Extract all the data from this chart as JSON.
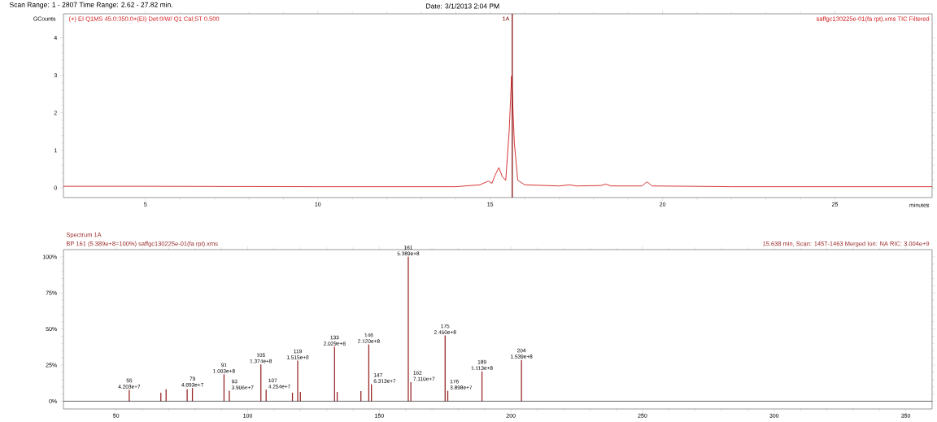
{
  "chart_data": [
    {
      "type": "line",
      "title": "Scan Range: 1 - 2807 Time Range: 2.62 - 27.82 min.",
      "subtitle": "Date: 3/1/2013 2:04 PM",
      "xlabel": "minutes",
      "ylabel": "GCounts",
      "x": [
        2.62,
        5,
        10,
        14.0,
        14.7,
        14.95,
        15.05,
        15.15,
        15.25,
        15.35,
        15.45,
        15.55,
        15.62,
        15.7,
        15.8,
        16,
        17,
        17.3,
        17.5,
        18.2,
        18.35,
        18.5,
        19.4,
        19.55,
        19.7,
        22,
        27.82
      ],
      "values": [
        0.04,
        0.04,
        0.03,
        0.03,
        0.08,
        0.18,
        0.12,
        0.35,
        0.54,
        0.3,
        0.2,
        1.5,
        2.98,
        1.2,
        0.2,
        0.08,
        0.05,
        0.08,
        0.05,
        0.06,
        0.1,
        0.05,
        0.05,
        0.16,
        0.05,
        0.03,
        0.03
      ],
      "color": "#d21f1f",
      "xlim": [
        2.62,
        27.82
      ],
      "ylim": [
        -0.26,
        4.64
      ],
      "xticks": [
        5,
        10,
        15,
        20,
        25
      ],
      "yticks": [
        0,
        1,
        2,
        3,
        4
      ],
      "ref_lines": [
        {
          "axis": "x",
          "value": 15.64,
          "label": "1A",
          "color": "#7a0000"
        }
      ],
      "annotations": [
        "(+) EI Q1MS 45.0:350.0+(EI) Det:0/W/ Q1 Cal;ST 0.500",
        "saffgc130225e-01(fa rpt).xms TIC Filtered"
      ]
    },
    {
      "type": "bar",
      "x": [
        55,
        67,
        69,
        77,
        79,
        91,
        93,
        105,
        107,
        117,
        119,
        120,
        133,
        134,
        143,
        146,
        147,
        161,
        162,
        175,
        176,
        189,
        204
      ],
      "values": [
        7.8,
        5.9,
        8.3,
        8.3,
        9.1,
        18.6,
        7.3,
        25.5,
        7.9,
        5.9,
        28.1,
        6.4,
        37.7,
        6.4,
        7.0,
        39.3,
        11.7,
        100,
        13.2,
        45.5,
        7.2,
        20.7,
        28.6
      ],
      "color": "#9a2a2a",
      "xlim": [
        30,
        360
      ],
      "ylim": [
        -5.4,
        105
      ],
      "xticks": [
        50,
        100,
        150,
        200,
        250,
        300,
        350
      ],
      "yticks": [
        {
          "value": 0,
          "label": "0%"
        },
        {
          "value": 25,
          "label": "25%"
        },
        {
          "value": 50,
          "label": "50%"
        },
        {
          "value": 75,
          "label": "75%"
        },
        {
          "value": 100,
          "label": "100%"
        }
      ],
      "ref_lines": [
        {
          "axis": "y",
          "value": 0,
          "color": "#000000"
        }
      ],
      "annotations": [
        "Spectrum 1A",
        "BP 161 (5.389e+8=100%) saffgc130225e-01(fa rpt).xms",
        "15.638 min, Scan: 1457-1463 Merged Ion: NA RIC: 3.004e+9",
        {
          "text": "55",
          "x": 55,
          "y": 7.8
        },
        {
          "text": "4.203e+7",
          "x": 55,
          "y": 7.8
        },
        {
          "text": "79",
          "x": 79,
          "y": 9.1
        },
        {
          "text": "4.893e+7",
          "x": 79,
          "y": 9.1
        },
        {
          "text": "91",
          "x": 91,
          "y": 18.6
        },
        {
          "text": "1.003e+8",
          "x": 91,
          "y": 18.6
        },
        {
          "text": "93",
          "x": 93,
          "y": 7.3
        },
        {
          "text": "3.906e+7",
          "x": 93,
          "y": 7.3
        },
        {
          "text": "105",
          "x": 105,
          "y": 25.5
        },
        {
          "text": "1.374e+8",
          "x": 105,
          "y": 25.5
        },
        {
          "text": "107",
          "x": 107,
          "y": 7.9
        },
        {
          "text": "4.254e+7",
          "x": 107,
          "y": 7.9
        },
        {
          "text": "119",
          "x": 119,
          "y": 28.1
        },
        {
          "text": "1.515e+8",
          "x": 119,
          "y": 28.1
        },
        {
          "text": "133",
          "x": 133,
          "y": 37.7
        },
        {
          "text": "2.029e+8",
          "x": 133,
          "y": 37.7
        },
        {
          "text": "146",
          "x": 146,
          "y": 39.3
        },
        {
          "text": "2.120e+8",
          "x": 146,
          "y": 39.3
        },
        {
          "text": "147",
          "x": 147,
          "y": 11.7
        },
        {
          "text": "6.313e+7",
          "x": 147,
          "y": 11.7
        },
        {
          "text": "161",
          "x": 161,
          "y": 100
        },
        {
          "text": "5.389e+8",
          "x": 161,
          "y": 100
        },
        {
          "text": "162",
          "x": 162,
          "y": 13.2
        },
        {
          "text": "7.110e+7",
          "x": 162,
          "y": 13.2
        },
        {
          "text": "175",
          "x": 175,
          "y": 45.5
        },
        {
          "text": "2.450e+8",
          "x": 175,
          "y": 45.5
        },
        {
          "text": "176",
          "x": 176,
          "y": 7.2
        },
        {
          "text": "3.898e+7",
          "x": 176,
          "y": 7.2
        },
        {
          "text": "189",
          "x": 189,
          "y": 20.7
        },
        {
          "text": "1.113e+8",
          "x": 189,
          "y": 20.7
        },
        {
          "text": "204",
          "x": 204,
          "y": 28.6
        },
        {
          "text": "1.539e+8",
          "x": 204,
          "y": 28.6
        }
      ]
    }
  ]
}
